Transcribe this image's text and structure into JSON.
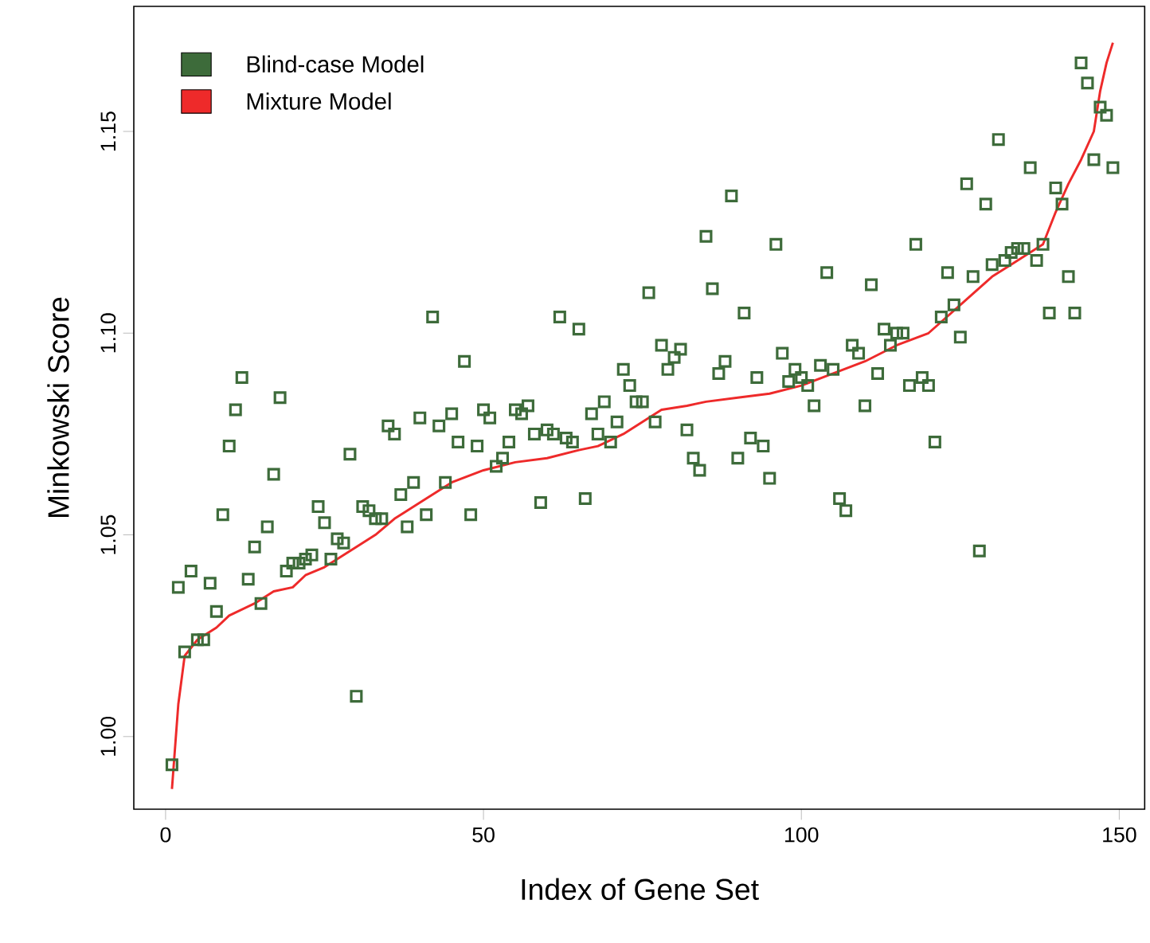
{
  "chart_data": {
    "type": "scatter",
    "xlabel": "Index of Gene Set",
    "ylabel": "Minkowski Score",
    "xlim": [
      -5,
      154
    ],
    "ylim": [
      0.982,
      1.181
    ],
    "xticks": [
      0,
      50,
      100,
      150
    ],
    "yticks": [
      {
        "value": 1.0,
        "label": "1.00"
      },
      {
        "value": 1.05,
        "label": "1.05"
      },
      {
        "value": 1.1,
        "label": "1.10"
      },
      {
        "value": 1.15,
        "label": "1.15"
      }
    ],
    "grid": false,
    "legend": "top left",
    "series": [
      {
        "name": "Blind-case Model",
        "marker": "square",
        "color": "#3d6b3a",
        "x": [
          1,
          2,
          3,
          4,
          5,
          6,
          7,
          8,
          9,
          10,
          11,
          12,
          13,
          14,
          15,
          16,
          17,
          18,
          19,
          20,
          21,
          22,
          23,
          24,
          25,
          26,
          27,
          28,
          29,
          30,
          31,
          32,
          33,
          34,
          35,
          36,
          37,
          38,
          39,
          40,
          41,
          42,
          43,
          44,
          45,
          46,
          47,
          48,
          49,
          50,
          51,
          52,
          53,
          54,
          55,
          56,
          57,
          58,
          59,
          60,
          61,
          62,
          63,
          64,
          65,
          66,
          67,
          68,
          69,
          70,
          71,
          72,
          73,
          74,
          75,
          76,
          77,
          78,
          79,
          80,
          81,
          82,
          83,
          84,
          85,
          86,
          87,
          88,
          89,
          90,
          91,
          92,
          93,
          94,
          95,
          96,
          97,
          98,
          99,
          100,
          101,
          102,
          103,
          104,
          105,
          106,
          107,
          108,
          109,
          110,
          111,
          112,
          113,
          114,
          115,
          116,
          117,
          118,
          119,
          120,
          121,
          122,
          123,
          124,
          125,
          126,
          127,
          128,
          129,
          130,
          131,
          132,
          133,
          134,
          135,
          136,
          137,
          138,
          139,
          140,
          141,
          142,
          143,
          144,
          145,
          146,
          147,
          148,
          149
        ],
        "values": [
          0.993,
          1.037,
          1.021,
          1.041,
          1.024,
          1.024,
          1.038,
          1.031,
          1.055,
          1.072,
          1.081,
          1.089,
          1.039,
          1.047,
          1.033,
          1.052,
          1.065,
          1.084,
          1.041,
          1.043,
          1.043,
          1.044,
          1.045,
          1.057,
          1.053,
          1.044,
          1.049,
          1.048,
          1.07,
          1.01,
          1.057,
          1.056,
          1.054,
          1.054,
          1.077,
          1.075,
          1.06,
          1.052,
          1.063,
          1.079,
          1.055,
          1.104,
          1.077,
          1.063,
          1.08,
          1.073,
          1.093,
          1.055,
          1.072,
          1.081,
          1.079,
          1.067,
          1.069,
          1.073,
          1.081,
          1.08,
          1.082,
          1.075,
          1.058,
          1.076,
          1.075,
          1.104,
          1.074,
          1.073,
          1.101,
          1.059,
          1.08,
          1.075,
          1.083,
          1.073,
          1.078,
          1.091,
          1.087,
          1.083,
          1.083,
          1.11,
          1.078,
          1.097,
          1.091,
          1.094,
          1.096,
          1.076,
          1.069,
          1.066,
          1.124,
          1.111,
          1.09,
          1.093,
          1.134,
          1.069,
          1.105,
          1.074,
          1.089,
          1.072,
          1.064,
          1.122,
          1.095,
          1.088,
          1.091,
          1.089,
          1.087,
          1.082,
          1.092,
          1.115,
          1.091,
          1.059,
          1.056,
          1.097,
          1.095,
          1.082,
          1.112,
          1.09,
          1.101,
          1.097,
          1.1,
          1.1,
          1.087,
          1.122,
          1.089,
          1.087,
          1.073,
          1.104,
          1.115,
          1.107,
          1.099,
          1.137,
          1.114,
          1.046,
          1.132,
          1.117,
          1.148,
          1.118,
          1.12,
          1.121,
          1.121,
          1.141,
          1.118,
          1.122,
          1.105,
          1.136,
          1.132,
          1.114,
          1.105,
          1.167,
          1.162,
          1.143,
          1.156,
          1.154,
          1.141
        ]
      },
      {
        "name": "Mixture Model",
        "type": "line",
        "marker": "none",
        "color": "#ee2a2a",
        "x": [
          1,
          2,
          3,
          5,
          8,
          10,
          14,
          17,
          20,
          22,
          25,
          30,
          33,
          36,
          40,
          45,
          50,
          55,
          60,
          65,
          68,
          72,
          75,
          78,
          82,
          85,
          90,
          95,
          100,
          105,
          110,
          115,
          120,
          125,
          130,
          135,
          138,
          140,
          142,
          144,
          146,
          147,
          148,
          149
        ],
        "values": [
          0.987,
          1.008,
          1.02,
          1.024,
          1.027,
          1.03,
          1.033,
          1.036,
          1.037,
          1.04,
          1.042,
          1.047,
          1.05,
          1.054,
          1.058,
          1.063,
          1.066,
          1.068,
          1.069,
          1.071,
          1.072,
          1.075,
          1.078,
          1.081,
          1.082,
          1.083,
          1.084,
          1.085,
          1.087,
          1.09,
          1.093,
          1.097,
          1.1,
          1.107,
          1.114,
          1.119,
          1.122,
          1.13,
          1.137,
          1.143,
          1.15,
          1.16,
          1.167,
          1.172
        ]
      }
    ]
  }
}
